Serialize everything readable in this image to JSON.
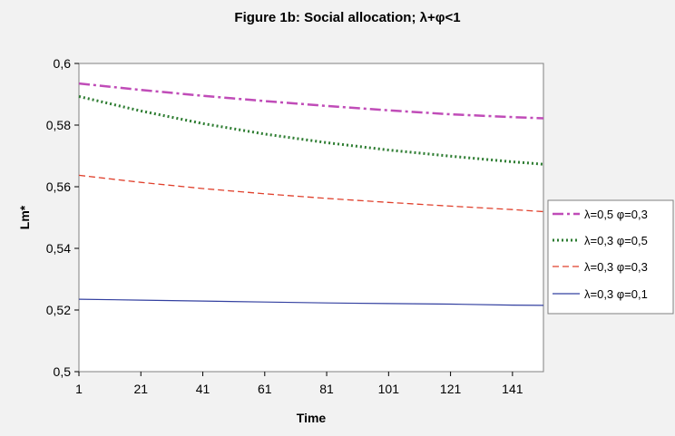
{
  "chart_data": {
    "type": "line",
    "title": "Figure 1b: Social allocation; λ+φ<1",
    "xlabel": "Time",
    "ylabel": "Lm*",
    "xlim": [
      1,
      151
    ],
    "ylim": [
      0.5,
      0.6
    ],
    "x_ticks": [
      1,
      21,
      41,
      61,
      81,
      101,
      121,
      141
    ],
    "x_tick_labels": [
      "1",
      "21",
      "41",
      "61",
      "81",
      "101",
      "121",
      "141"
    ],
    "y_ticks": [
      0.5,
      0.52,
      0.54,
      0.56,
      0.58,
      0.6
    ],
    "y_tick_labels": [
      "0,5",
      "0,52",
      "0,54",
      "0,56",
      "0,58",
      "0,6"
    ],
    "grid": false,
    "legend_position": "right",
    "series": [
      {
        "name": "λ=0,5 φ=0,3",
        "color": "#c04cb8",
        "dash": "dash-dot",
        "x": [
          1,
          21,
          41,
          61,
          81,
          101,
          121,
          141,
          151
        ],
        "y": [
          0.5935,
          0.5914,
          0.5895,
          0.5878,
          0.5862,
          0.5848,
          0.5835,
          0.5826,
          0.5822
        ]
      },
      {
        "name": "λ=0,3 φ=0,5",
        "color": "#2e7d32",
        "dash": "dotted",
        "x": [
          1,
          21,
          41,
          61,
          81,
          101,
          121,
          141,
          151
        ],
        "y": [
          0.5893,
          0.5846,
          0.5805,
          0.5771,
          0.5743,
          0.5719,
          0.5699,
          0.5681,
          0.5673
        ]
      },
      {
        "name": "λ=0,3 φ=0,3",
        "color": "#e0402c",
        "dash": "dashed",
        "x": [
          1,
          21,
          41,
          61,
          81,
          101,
          121,
          141,
          151
        ],
        "y": [
          0.5637,
          0.5614,
          0.5594,
          0.5577,
          0.5562,
          0.5549,
          0.5537,
          0.5526,
          0.5519
        ]
      },
      {
        "name": "λ=0,3 φ=0,1",
        "color": "#3340a0",
        "dash": "solid",
        "x": [
          1,
          21,
          41,
          61,
          81,
          101,
          121,
          141,
          151
        ],
        "y": [
          0.5235,
          0.5232,
          0.5229,
          0.5226,
          0.5223,
          0.5221,
          0.5219,
          0.5216,
          0.5215
        ]
      }
    ]
  }
}
